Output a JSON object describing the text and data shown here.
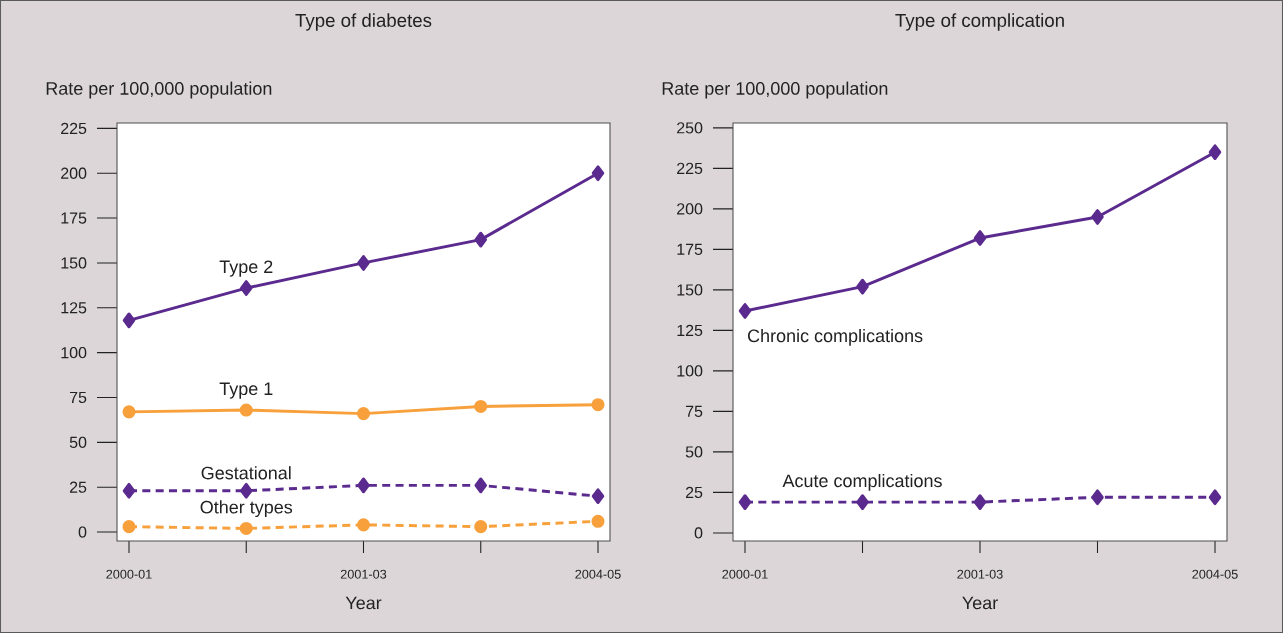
{
  "chart_data": [
    {
      "type": "line",
      "title": "Type of diabetes",
      "xlabel": "Year",
      "ylabel": "Rate per 100,000 population",
      "categories": [
        "2000-01",
        null,
        "2001-03",
        null,
        "2004-05"
      ],
      "ylim": [
        -5,
        228
      ],
      "yticks": [
        0,
        25,
        50,
        75,
        100,
        125,
        150,
        175,
        200,
        225
      ],
      "series": [
        {
          "name": "Type 2",
          "color": "#5b2a8e",
          "marker": "diamond",
          "line_style": "solid",
          "values": [
            118,
            136,
            150,
            163,
            200
          ]
        },
        {
          "name": "Type 1",
          "color": "#f7a03c",
          "marker": "circle",
          "line_style": "solid",
          "values": [
            67,
            68,
            66,
            70,
            71
          ]
        },
        {
          "name": "Gestational",
          "color": "#5b2a8e",
          "marker": "diamond",
          "line_style": "dashed",
          "values": [
            23,
            23,
            26,
            26,
            20
          ]
        },
        {
          "name": "Other types",
          "color": "#f7a03c",
          "marker": "circle",
          "line_style": "dashed",
          "values": [
            3,
            2,
            4,
            3,
            6
          ]
        }
      ]
    },
    {
      "type": "line",
      "title": "Type of complication",
      "xlabel": "Year",
      "ylabel": "Rate per 100,000 population",
      "categories": [
        "2000-01",
        null,
        "2001-03",
        null,
        "2004-05"
      ],
      "ylim": [
        -5,
        253
      ],
      "yticks": [
        0,
        25,
        50,
        75,
        100,
        125,
        150,
        175,
        200,
        225,
        250
      ],
      "series": [
        {
          "name": "Chronic complications",
          "color": "#5b2a8e",
          "marker": "diamond",
          "line_style": "solid",
          "values": [
            137,
            152,
            182,
            195,
            235
          ]
        },
        {
          "name": "Acute complications",
          "color": "#5b2a8e",
          "marker": "diamond",
          "line_style": "dashed",
          "values": [
            19,
            19,
            19,
            22,
            22
          ]
        }
      ]
    }
  ]
}
